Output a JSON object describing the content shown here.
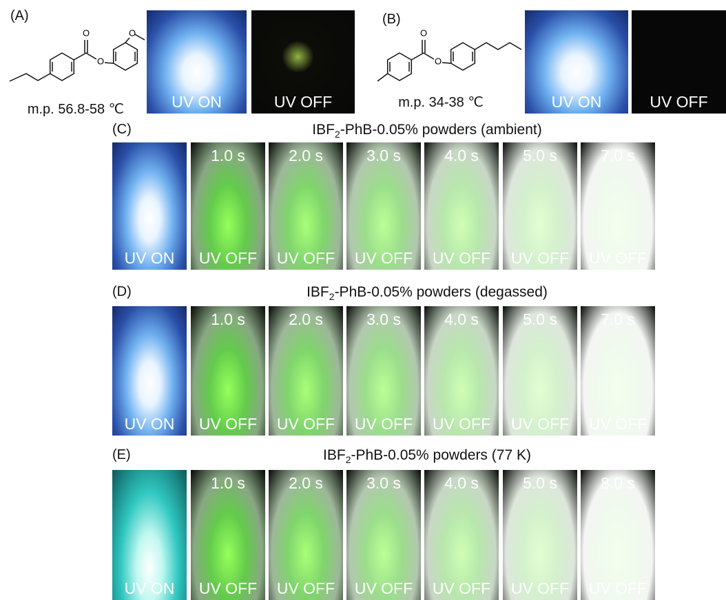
{
  "panel_a": {
    "label": "(A)",
    "atoms": [
      "O",
      "O",
      "O"
    ],
    "melting_point": "m.p. 56.8-58 ℃",
    "photos": [
      "UV ON",
      "UV OFF"
    ]
  },
  "panel_b": {
    "label": "(B)",
    "atoms": [
      "O",
      "O"
    ],
    "melting_point": "m.p. 34-38 ℃",
    "photos": [
      "UV ON",
      "UV OFF"
    ]
  },
  "rows": [
    {
      "label": "(C)",
      "title": {
        "prefix": "IBF",
        "subscript": "2",
        "suffix": "-PhB-0.05% powders (ambient)"
      },
      "frames": [
        {
          "caption": "UV ON"
        },
        {
          "time": "1.0 s",
          "caption": "UV OFF"
        },
        {
          "time": "2.0 s",
          "caption": "UV OFF"
        },
        {
          "time": "3.0 s",
          "caption": "UV OFF"
        },
        {
          "time": "4.0 s",
          "caption": "UV OFF"
        },
        {
          "time": "5.0 s",
          "caption": "UV OFF"
        },
        {
          "time": "7.0 s",
          "caption": "UV OFF"
        }
      ]
    },
    {
      "label": "(D)",
      "title": {
        "prefix": "IBF",
        "subscript": "2",
        "suffix": "-PhB-0.05% powders (degassed)"
      },
      "frames": [
        {
          "caption": "UV ON"
        },
        {
          "time": "1.0 s",
          "caption": "UV OFF"
        },
        {
          "time": "2.0 s",
          "caption": "UV OFF"
        },
        {
          "time": "3.0 s",
          "caption": "UV OFF"
        },
        {
          "time": "4.0 s",
          "caption": "UV OFF"
        },
        {
          "time": "5.0 s",
          "caption": "UV OFF"
        },
        {
          "time": "7.0 s",
          "caption": "UV OFF"
        }
      ]
    },
    {
      "label": "(E)",
      "title": {
        "prefix": "IBF",
        "subscript": "2",
        "suffix": "-PhB-0.05% powders (77 K)"
      },
      "frames": [
        {
          "caption": "UV ON"
        },
        {
          "time": "1.0 s",
          "caption": "UV OFF"
        },
        {
          "time": "2.0 s",
          "caption": "UV OFF"
        },
        {
          "time": "3.0 s",
          "caption": "UV OFF"
        },
        {
          "time": "4.0 s",
          "caption": "UV OFF"
        },
        {
          "time": "5.0 s",
          "caption": "UV OFF"
        },
        {
          "time": "8.0 s",
          "caption": "UV OFF"
        }
      ]
    }
  ]
}
